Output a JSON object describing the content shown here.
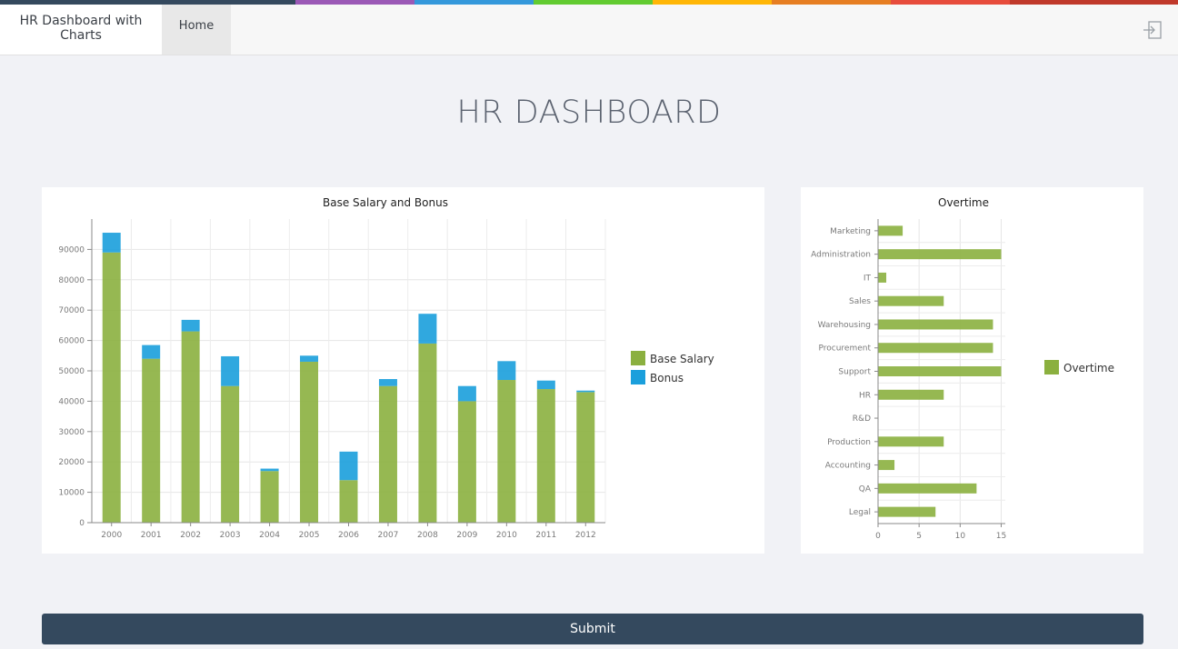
{
  "stripe_colors": [
    "#34495e",
    "#9b59b6",
    "#3498db",
    "#62cb31",
    "#ffb606",
    "#e67e22",
    "#e74c3c",
    "#c0392b"
  ],
  "header": {
    "brand": "HR Dashboard with Charts",
    "nav_home": "Home",
    "logout_icon": "sign-in-icon"
  },
  "page_title": "HR DASHBOARD",
  "colors": {
    "base_salary": "#8bb03f",
    "bonus": "#1a9fdc",
    "overtime": "#8bb03f"
  },
  "submit_label": "Submit",
  "chart_data": [
    {
      "type": "bar",
      "stacked": true,
      "orientation": "vertical",
      "title": "Base Salary and Bonus",
      "categories": [
        "2000",
        "2001",
        "2002",
        "2003",
        "2004",
        "2005",
        "2006",
        "2007",
        "2008",
        "2009",
        "2010",
        "2011",
        "2012"
      ],
      "series": [
        {
          "name": "Base Salary",
          "values": [
            89000,
            54000,
            63000,
            45000,
            17000,
            53000,
            14000,
            45000,
            59000,
            40000,
            47000,
            44000,
            43000
          ]
        },
        {
          "name": "Bonus",
          "values": [
            6500,
            4500,
            3800,
            9800,
            800,
            2000,
            9400,
            2300,
            9800,
            5000,
            6200,
            2800,
            500
          ]
        }
      ],
      "yticks": [
        0,
        10000,
        20000,
        30000,
        40000,
        50000,
        60000,
        70000,
        80000,
        90000
      ],
      "ylim": [
        0,
        100000
      ],
      "grid": true,
      "legend": "right"
    },
    {
      "type": "bar",
      "orientation": "horizontal",
      "title": "Overtime",
      "categories": [
        "Marketing",
        "Administration",
        "IT",
        "Sales",
        "Warehousing",
        "Procurement",
        "Support",
        "HR",
        "R&D",
        "Production",
        "Accounting",
        "QA",
        "Legal"
      ],
      "series": [
        {
          "name": "Overtime",
          "values": [
            3,
            15,
            1,
            8,
            14,
            14,
            15,
            8,
            0,
            8,
            2,
            12,
            7
          ]
        }
      ],
      "xticks": [
        0,
        5,
        10,
        15
      ],
      "xlim": [
        0,
        15.5
      ],
      "grid": true,
      "legend": "right"
    }
  ]
}
